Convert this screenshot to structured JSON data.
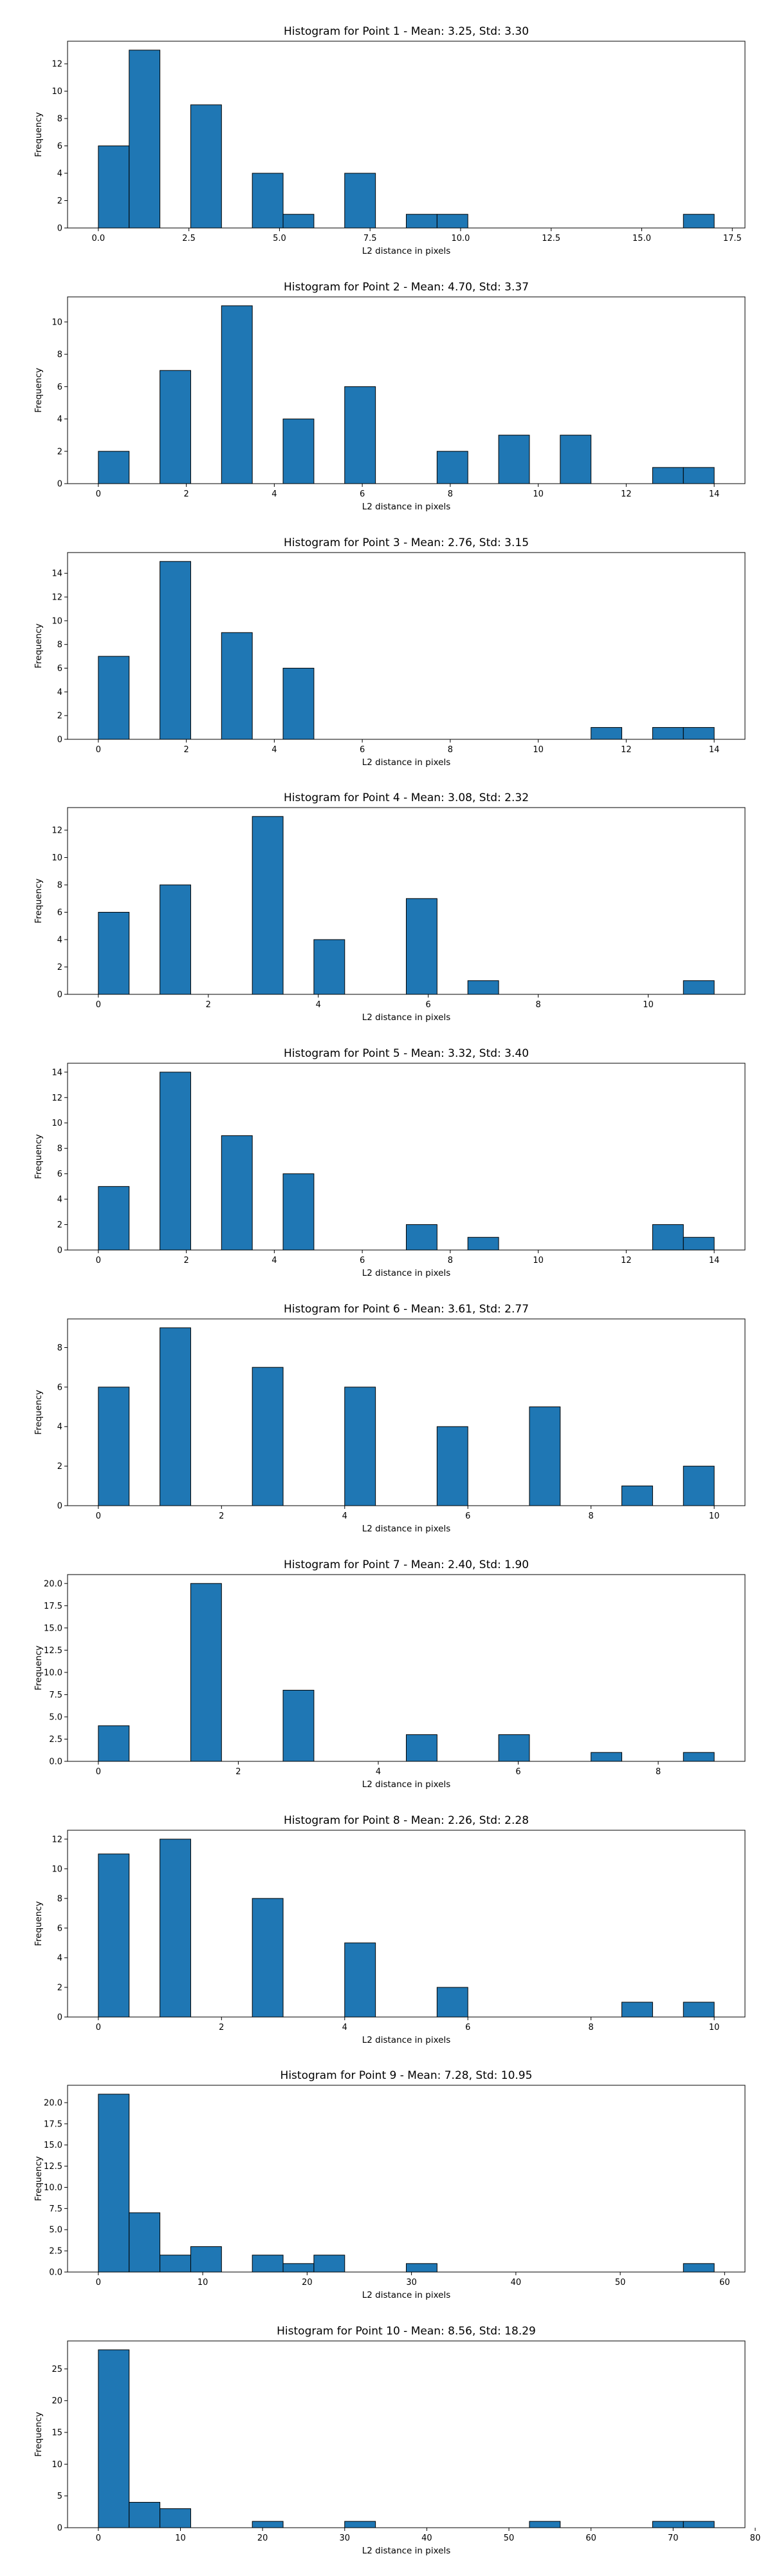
{
  "chart_data": [
    {
      "type": "bar",
      "title": "Histogram for Point 1 - Mean: 3.25, Std: 3.30",
      "xlabel": "L2 distance in pixels",
      "ylabel": "Frequency",
      "xlim": [
        -0.85,
        17.85
      ],
      "ylim": [
        0,
        13.65
      ],
      "xticks": [
        0.0,
        2.5,
        5.0,
        7.5,
        10.0,
        12.5,
        15.0,
        17.5
      ],
      "xtick_labels": [
        "0.0",
        "2.5",
        "5.0",
        "7.5",
        "10.0",
        "12.5",
        "15.0",
        "17.5"
      ],
      "yticks": [
        0,
        2,
        4,
        6,
        8,
        10,
        12
      ],
      "bin_edges": [
        0,
        0.85,
        1.7,
        2.55,
        3.4,
        4.25,
        5.1,
        5.95,
        6.8,
        7.65,
        8.5,
        9.35,
        10.2,
        11.05,
        11.9,
        12.75,
        13.6,
        14.45,
        15.3,
        16.15,
        17.0
      ],
      "counts": [
        6,
        13,
        0,
        9,
        0,
        4,
        1,
        0,
        4,
        0,
        1,
        1,
        0,
        0,
        0,
        0,
        0,
        0,
        0,
        1
      ]
    },
    {
      "type": "bar",
      "title": "Histogram for Point 2 - Mean: 4.70, Std: 3.37",
      "xlabel": "L2 distance in pixels",
      "ylabel": "Frequency",
      "xlim": [
        -0.7,
        14.7
      ],
      "ylim": [
        0,
        11.55
      ],
      "xticks": [
        0,
        2,
        4,
        6,
        8,
        10,
        12,
        14
      ],
      "xtick_labels": [
        "0",
        "2",
        "4",
        "6",
        "8",
        "10",
        "12",
        "14"
      ],
      "yticks": [
        0,
        2,
        4,
        6,
        8,
        10
      ],
      "bin_edges": [
        0,
        0.7,
        1.4,
        2.1,
        2.8,
        3.5,
        4.2,
        4.9,
        5.6,
        6.3,
        7.0,
        7.7,
        8.4,
        9.1,
        9.8,
        10.5,
        11.2,
        11.9,
        12.6,
        13.3,
        14.0
      ],
      "counts": [
        2,
        0,
        7,
        0,
        11,
        0,
        4,
        0,
        6,
        0,
        0,
        2,
        0,
        3,
        0,
        3,
        0,
        0,
        1,
        1
      ]
    },
    {
      "type": "bar",
      "title": "Histogram for Point 3 - Mean: 2.76, Std: 3.15",
      "xlabel": "L2 distance in pixels",
      "ylabel": "Frequency",
      "xlim": [
        -0.7,
        14.7
      ],
      "ylim": [
        0,
        15.75
      ],
      "xticks": [
        0,
        2,
        4,
        6,
        8,
        10,
        12,
        14
      ],
      "xtick_labels": [
        "0",
        "2",
        "4",
        "6",
        "8",
        "10",
        "12",
        "14"
      ],
      "yticks": [
        0,
        2,
        4,
        6,
        8,
        10,
        12,
        14
      ],
      "bin_edges": [
        0,
        0.7,
        1.4,
        2.1,
        2.8,
        3.5,
        4.2,
        4.9,
        5.6,
        6.3,
        7.0,
        7.7,
        8.4,
        9.1,
        9.8,
        10.5,
        11.2,
        11.9,
        12.6,
        13.3,
        14.0
      ],
      "counts": [
        7,
        0,
        15,
        0,
        9,
        0,
        6,
        0,
        0,
        0,
        0,
        0,
        0,
        0,
        0,
        0,
        1,
        0,
        1,
        1
      ]
    },
    {
      "type": "bar",
      "title": "Histogram for Point 4 - Mean: 3.08, Std: 2.32",
      "xlabel": "L2 distance in pixels",
      "ylabel": "Frequency",
      "xlim": [
        -0.56,
        11.76
      ],
      "ylim": [
        0,
        13.65
      ],
      "xticks": [
        0,
        2,
        4,
        6,
        8,
        10
      ],
      "xtick_labels": [
        "0",
        "2",
        "4",
        "6",
        "8",
        "10"
      ],
      "yticks": [
        0,
        2,
        4,
        6,
        8,
        10,
        12
      ],
      "bin_edges": [
        0,
        0.56,
        1.12,
        1.68,
        2.24,
        2.8,
        3.36,
        3.92,
        4.48,
        5.04,
        5.6,
        6.16,
        6.72,
        7.28,
        7.84,
        8.4,
        8.96,
        9.52,
        10.08,
        10.64,
        11.2
      ],
      "counts": [
        6,
        0,
        8,
        0,
        0,
        13,
        0,
        4,
        0,
        0,
        7,
        0,
        1,
        0,
        0,
        0,
        0,
        0,
        0,
        1
      ]
    },
    {
      "type": "bar",
      "title": "Histogram for Point 5 - Mean: 3.32, Std: 3.40",
      "xlabel": "L2 distance in pixels",
      "ylabel": "Frequency",
      "xlim": [
        -0.7,
        14.7
      ],
      "ylim": [
        0,
        14.7
      ],
      "xticks": [
        0,
        2,
        4,
        6,
        8,
        10,
        12,
        14
      ],
      "xtick_labels": [
        "0",
        "2",
        "4",
        "6",
        "8",
        "10",
        "12",
        "14"
      ],
      "yticks": [
        0,
        2,
        4,
        6,
        8,
        10,
        12,
        14
      ],
      "bin_edges": [
        0,
        0.7,
        1.4,
        2.1,
        2.8,
        3.5,
        4.2,
        4.9,
        5.6,
        6.3,
        7.0,
        7.7,
        8.4,
        9.1,
        9.8,
        10.5,
        11.2,
        11.9,
        12.6,
        13.3,
        14.0
      ],
      "counts": [
        5,
        0,
        14,
        0,
        9,
        0,
        6,
        0,
        0,
        0,
        2,
        0,
        1,
        0,
        0,
        0,
        0,
        0,
        2,
        1
      ]
    },
    {
      "type": "bar",
      "title": "Histogram for Point 6 - Mean: 3.61, Std: 2.77",
      "xlabel": "L2 distance in pixels",
      "ylabel": "Frequency",
      "xlim": [
        -0.5,
        10.5
      ],
      "ylim": [
        0,
        9.45
      ],
      "xticks": [
        0,
        2,
        4,
        6,
        8,
        10
      ],
      "xtick_labels": [
        "0",
        "2",
        "4",
        "6",
        "8",
        "10"
      ],
      "yticks": [
        0,
        2,
        4,
        6,
        8
      ],
      "bin_edges": [
        0,
        0.5,
        1.0,
        1.5,
        2.0,
        2.5,
        3.0,
        3.5,
        4.0,
        4.5,
        5.0,
        5.5,
        6.0,
        6.5,
        7.0,
        7.5,
        8.0,
        8.5,
        9.0,
        9.5,
        10.0
      ],
      "counts": [
        6,
        0,
        9,
        0,
        0,
        7,
        0,
        0,
        6,
        0,
        0,
        4,
        0,
        0,
        5,
        0,
        0,
        1,
        0,
        2
      ]
    },
    {
      "type": "bar",
      "title": "Histogram for Point 7 - Mean: 2.40, Std: 1.90",
      "xlabel": "L2 distance in pixels",
      "ylabel": "Frequency",
      "xlim": [
        -0.44,
        9.24
      ],
      "ylim": [
        0,
        21.0
      ],
      "xticks": [
        0,
        2,
        4,
        6,
        8
      ],
      "xtick_labels": [
        "0",
        "2",
        "4",
        "6",
        "8"
      ],
      "yticks": [
        0.0,
        2.5,
        5.0,
        7.5,
        10.0,
        12.5,
        15.0,
        17.5,
        20.0
      ],
      "ytick_labels": [
        "0.0",
        "2.5",
        "5.0",
        "7.5",
        "10.0",
        "12.5",
        "15.0",
        "17.5",
        "20.0"
      ],
      "bin_edges": [
        0,
        0.44,
        0.88,
        1.32,
        1.76,
        2.2,
        2.64,
        3.08,
        3.52,
        3.96,
        4.4,
        4.84,
        5.28,
        5.72,
        6.16,
        6.6,
        7.04,
        7.48,
        7.92,
        8.36,
        8.8
      ],
      "counts": [
        4,
        0,
        0,
        20,
        0,
        0,
        8,
        0,
        0,
        0,
        3,
        0,
        0,
        3,
        0,
        0,
        1,
        0,
        0,
        1
      ]
    },
    {
      "type": "bar",
      "title": "Histogram for Point 8 - Mean: 2.26, Std: 2.28",
      "xlabel": "L2 distance in pixels",
      "ylabel": "Frequency",
      "xlim": [
        -0.5,
        10.5
      ],
      "ylim": [
        0,
        12.6
      ],
      "xticks": [
        0,
        2,
        4,
        6,
        8,
        10
      ],
      "xtick_labels": [
        "0",
        "2",
        "4",
        "6",
        "8",
        "10"
      ],
      "yticks": [
        0,
        2,
        4,
        6,
        8,
        10,
        12
      ],
      "bin_edges": [
        0,
        0.5,
        1.0,
        1.5,
        2.0,
        2.5,
        3.0,
        3.5,
        4.0,
        4.5,
        5.0,
        5.5,
        6.0,
        6.5,
        7.0,
        7.5,
        8.0,
        8.5,
        9.0,
        9.5,
        10.0
      ],
      "counts": [
        11,
        0,
        12,
        0,
        0,
        8,
        0,
        0,
        5,
        0,
        0,
        2,
        0,
        0,
        0,
        0,
        0,
        1,
        0,
        1
      ]
    },
    {
      "type": "bar",
      "title": "Histogram for Point 9 - Mean: 7.28, Std: 10.95",
      "xlabel": "L2 distance in pixels",
      "ylabel": "Frequency",
      "xlim": [
        -2.95,
        61.95
      ],
      "ylim": [
        0,
        22.05
      ],
      "xticks": [
        0,
        10,
        20,
        30,
        40,
        50,
        60
      ],
      "xtick_labels": [
        "0",
        "10",
        "20",
        "30",
        "40",
        "50",
        "60"
      ],
      "yticks": [
        0.0,
        2.5,
        5.0,
        7.5,
        10.0,
        12.5,
        15.0,
        17.5,
        20.0
      ],
      "ytick_labels": [
        "0.0",
        "2.5",
        "5.0",
        "7.5",
        "10.0",
        "12.5",
        "15.0",
        "17.5",
        "20.0"
      ],
      "bin_edges": [
        0,
        2.95,
        5.9,
        8.85,
        11.8,
        14.75,
        17.7,
        20.65,
        23.6,
        26.55,
        29.5,
        32.45,
        35.4,
        38.35,
        41.3,
        44.25,
        47.2,
        50.15,
        53.1,
        56.05,
        59.0
      ],
      "counts": [
        21,
        7,
        2,
        3,
        0,
        2,
        1,
        2,
        0,
        0,
        1,
        0,
        0,
        0,
        0,
        0,
        0,
        0,
        0,
        1
      ]
    },
    {
      "type": "bar",
      "title": "Histogram for Point 10 - Mean: 8.56, Std: 18.29",
      "xlabel": "L2 distance in pixels",
      "ylabel": "Frequency",
      "xlim": [
        -3.75,
        78.75
      ],
      "ylim": [
        0,
        29.4
      ],
      "xticks": [
        0,
        10,
        20,
        30,
        40,
        50,
        60,
        70,
        80
      ],
      "xtick_labels": [
        "0",
        "10",
        "20",
        "30",
        "40",
        "50",
        "60",
        "70",
        "80"
      ],
      "yticks": [
        0,
        5,
        10,
        15,
        20,
        25
      ],
      "bin_edges": [
        0,
        3.75,
        7.5,
        11.25,
        15.0,
        18.75,
        22.5,
        26.25,
        30.0,
        33.75,
        37.5,
        41.25,
        45.0,
        48.75,
        52.5,
        56.25,
        60.0,
        63.75,
        67.5,
        71.25,
        75.0
      ],
      "counts": [
        28,
        4,
        3,
        0,
        0,
        1,
        0,
        0,
        1,
        0,
        0,
        0,
        0,
        0,
        1,
        0,
        0,
        0,
        1,
        1
      ]
    }
  ]
}
